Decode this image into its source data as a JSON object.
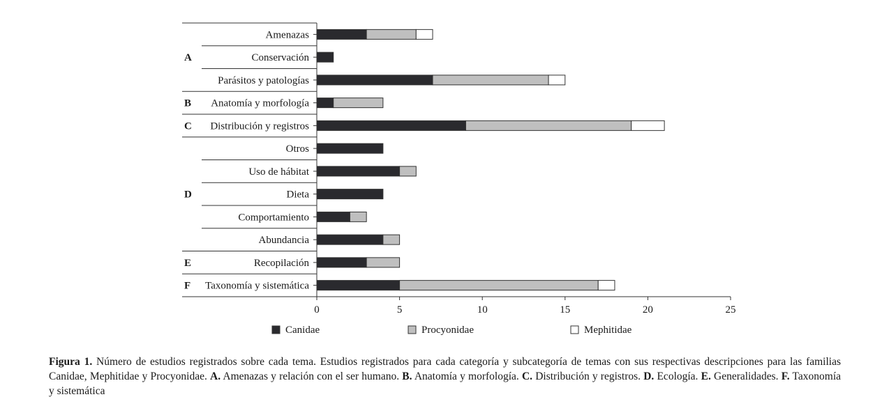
{
  "chart_data": {
    "type": "bar",
    "orientation": "horizontal",
    "stacked": true,
    "groups": [
      {
        "label": "A",
        "categories": [
          "Amenazas",
          "Conservación",
          "Parásitos y patologías"
        ]
      },
      {
        "label": "B",
        "categories": [
          "Anatomía y morfología"
        ]
      },
      {
        "label": "C",
        "categories": [
          "Distribución y registros"
        ]
      },
      {
        "label": "D",
        "categories": [
          "Otros",
          "Uso de hábitat",
          "Dieta",
          "Comportamiento",
          "Abundancia"
        ]
      },
      {
        "label": "E",
        "categories": [
          "Recopilación"
        ]
      },
      {
        "label": "F",
        "categories": [
          "Taxonomía y sistemática"
        ]
      }
    ],
    "categories": [
      "Amenazas",
      "Conservación",
      "Parásitos y patologías",
      "Anatomía y morfología",
      "Distribución y registros",
      "Otros",
      "Uso de hábitat",
      "Dieta",
      "Comportamiento",
      "Abundancia",
      "Recopilación",
      "Taxonomía y sistemática"
    ],
    "series": [
      {
        "name": "Canidae",
        "color": "#2a2a2e",
        "values": [
          3,
          1,
          7,
          1,
          9,
          4,
          5,
          4,
          2,
          4,
          3,
          5
        ]
      },
      {
        "name": "Procyonidae",
        "color": "#bfbfbf",
        "values": [
          3,
          0,
          7,
          3,
          10,
          0,
          1,
          0,
          1,
          1,
          2,
          12
        ]
      },
      {
        "name": "Mephitidae",
        "color": "#ffffff",
        "values": [
          1,
          0,
          1,
          0,
          2,
          0,
          0,
          0,
          0,
          0,
          0,
          1
        ]
      }
    ],
    "xlim": [
      0,
      25
    ],
    "xticks": [
      0,
      5,
      10,
      15,
      20,
      25
    ],
    "title": "",
    "xlabel": "",
    "ylabel": "",
    "legend_position": "bottom",
    "grid": false
  },
  "caption": {
    "label": "Figura 1.",
    "intro": " Número de estudios registrados sobre cada tema. Estudios registrados para cada categoría y subcategoría de temas con sus respectivas descripciones para las familias Canidae, Mephitidae y Procyonidae. ",
    "items": [
      {
        "key": "A.",
        "text": " Amenazas y relación con el ser humano. "
      },
      {
        "key": "B.",
        "text": " Anatomía y morfología. "
      },
      {
        "key": "C.",
        "text": " Distribución y registros. "
      },
      {
        "key": "D.",
        "text": " Ecología. "
      },
      {
        "key": "E.",
        "text": " Generalidades. "
      },
      {
        "key": "F.",
        "text": " Taxonomía y sistemática"
      }
    ]
  }
}
